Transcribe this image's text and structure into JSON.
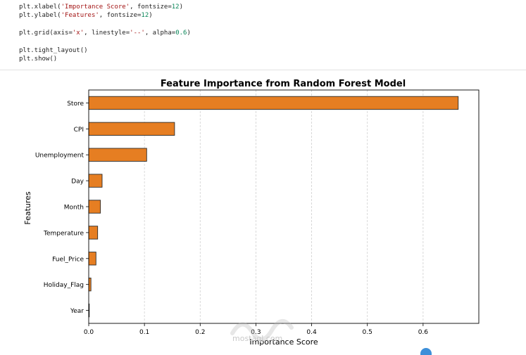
{
  "code_cell": {
    "lines": [
      [
        {
          "t": "plt.xlabel(",
          "c": "fn"
        },
        {
          "t": "'Importance Score'",
          "c": "str"
        },
        {
          "t": ", fontsize=",
          "c": "fn"
        },
        {
          "t": "12",
          "c": "num"
        },
        {
          "t": ")",
          "c": "fn"
        }
      ],
      [
        {
          "t": "plt.ylabel(",
          "c": "fn"
        },
        {
          "t": "'Features'",
          "c": "str"
        },
        {
          "t": ", fontsize=",
          "c": "fn"
        },
        {
          "t": "12",
          "c": "num"
        },
        {
          "t": ")",
          "c": "fn"
        }
      ],
      [],
      [
        {
          "t": "plt.grid(axis=",
          "c": "fn"
        },
        {
          "t": "'x'",
          "c": "str"
        },
        {
          "t": ", linestyle=",
          "c": "fn"
        },
        {
          "t": "'--'",
          "c": "str"
        },
        {
          "t": ", alpha=",
          "c": "fn"
        },
        {
          "t": "0.6",
          "c": "num"
        },
        {
          "t": ")",
          "c": "fn"
        }
      ],
      [],
      [
        {
          "t": "plt.tight_layout()",
          "c": "fn"
        }
      ],
      [
        {
          "t": "plt.show()",
          "c": "fn"
        }
      ]
    ]
  },
  "chart_data": {
    "type": "bar",
    "orientation": "horizontal",
    "title": "Feature Importance from Random Forest Model",
    "xlabel": "Importance Score",
    "ylabel": "Features",
    "categories": [
      "Store",
      "CPI",
      "Unemployment",
      "Day",
      "Month",
      "Temperature",
      "Fuel_Price",
      "Holiday_Flag",
      "Year"
    ],
    "values": [
      0.663,
      0.154,
      0.104,
      0.024,
      0.021,
      0.016,
      0.013,
      0.004,
      0.001
    ],
    "xlim": [
      0,
      0.7
    ],
    "xticks": [
      0.0,
      0.1,
      0.2,
      0.3,
      0.4,
      0.5,
      0.6
    ],
    "xtick_labels": [
      "0.0",
      "0.1",
      "0.2",
      "0.3",
      "0.4",
      "0.5",
      "0.6"
    ],
    "grid": {
      "axis": "x",
      "style": "dashed"
    },
    "bar_color": "#e67e22",
    "bar_edge_color": "#2b2b2b"
  },
  "watermark": {
    "text": "mostaql.com"
  }
}
